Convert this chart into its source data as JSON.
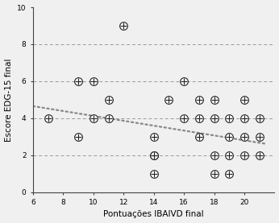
{
  "title": "",
  "xlabel": "Pontuações IBAIVD final",
  "ylabel": "Escore EDG-15 final",
  "xlim": [
    6,
    22
  ],
  "ylim": [
    0,
    10
  ],
  "xticks": [
    6,
    8,
    10,
    12,
    14,
    16,
    18,
    20
  ],
  "yticks": [
    0,
    2,
    4,
    6,
    8,
    10
  ],
  "hlines": [
    2,
    4,
    6,
    8
  ],
  "scatter_x": [
    7,
    9,
    9,
    10,
    10,
    11,
    11,
    12,
    14,
    14,
    14,
    14,
    15,
    16,
    16,
    17,
    17,
    17,
    18,
    18,
    18,
    18,
    19,
    19,
    19,
    19,
    20,
    20,
    20,
    20,
    21,
    21,
    21
  ],
  "scatter_y": [
    4,
    6,
    3,
    6,
    4,
    4,
    5,
    9,
    3,
    2,
    2,
    1,
    5,
    6,
    4,
    5,
    4,
    3,
    5,
    4,
    2,
    1,
    4,
    3,
    2,
    1,
    5,
    4,
    3,
    2,
    4,
    3,
    2
  ],
  "trendline_x": [
    6.0,
    21.5
  ],
  "trendline_y": [
    4.65,
    2.6
  ],
  "marker_size": 7,
  "marker_color": "#222222",
  "trendline_color": "#888888",
  "hline_color": "#999999",
  "background_color": "#f0f0f0",
  "axis_color": "#444444",
  "font_size": 7.5,
  "tick_labelsize": 6.5
}
